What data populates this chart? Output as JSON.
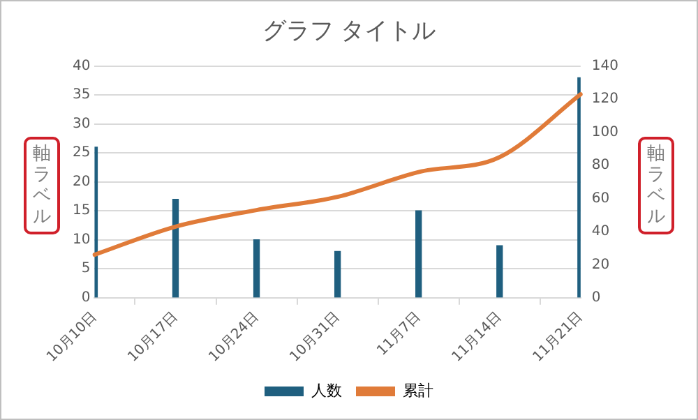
{
  "chart_data": {
    "type": "bar",
    "title": "グラフ タイトル",
    "ylabel": "軸ラベル",
    "y2label": "軸ラベル",
    "categories": [
      "10月10日",
      "10月17日",
      "10月24日",
      "10月31日",
      "11月7日",
      "11月14日",
      "11月21日"
    ],
    "series": [
      {
        "name": "人数",
        "color": "#1f5f7f",
        "values": [
          26,
          17,
          10,
          8,
          15,
          9,
          38
        ]
      },
      {
        "name": "累計",
        "type": "line",
        "axis": "y2",
        "color": "#e07b39",
        "values": [
          26,
          43,
          53,
          61,
          76,
          85,
          123
        ]
      }
    ],
    "ylim": [
      0,
      40
    ],
    "yticks": [
      0,
      5,
      10,
      15,
      20,
      25,
      30,
      35,
      40
    ],
    "y2lim": [
      0,
      140
    ],
    "y2ticks": [
      0,
      20,
      40,
      60,
      80,
      100,
      120,
      140
    ],
    "grid": "y",
    "legend": "bottom",
    "marker": "none"
  }
}
